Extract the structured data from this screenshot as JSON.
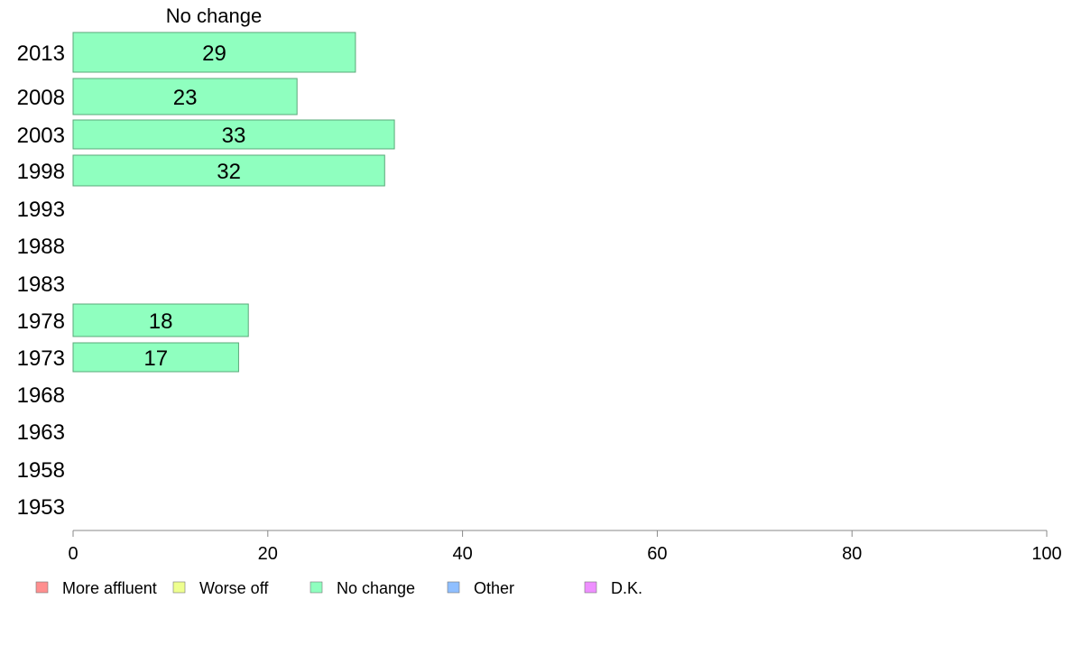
{
  "chart_data": {
    "type": "bar",
    "orientation": "horizontal",
    "title": "No change",
    "categories": [
      "2013",
      "2008",
      "2003",
      "1998",
      "1993",
      "1988",
      "1983",
      "1978",
      "1973",
      "1968",
      "1963",
      "1958",
      "1953"
    ],
    "series": [
      {
        "name": "No change",
        "values": [
          29,
          23,
          33,
          32,
          null,
          null,
          null,
          18,
          17,
          null,
          null,
          null,
          null
        ],
        "labels": [
          "29",
          "23",
          "33",
          "32",
          "",
          "",
          "",
          "18",
          "17",
          "",
          "",
          "",
          ""
        ]
      }
    ],
    "xlim": [
      0,
      100
    ],
    "xticks": [
      0,
      20,
      40,
      60,
      80,
      100
    ],
    "grid": false,
    "legend_position": "bottom",
    "legend": [
      {
        "label": "More affluent",
        "color": "#ff8f8f"
      },
      {
        "label": "Worse off",
        "color": "#eeff8f"
      },
      {
        "label": "No change",
        "color": "#8fffbf"
      },
      {
        "label": "Other",
        "color": "#8fbfff"
      },
      {
        "label": "D.K.",
        "color": "#ee8fff"
      }
    ],
    "bar_color": "#8fffbf",
    "bar_stroke": "#5aa878"
  }
}
